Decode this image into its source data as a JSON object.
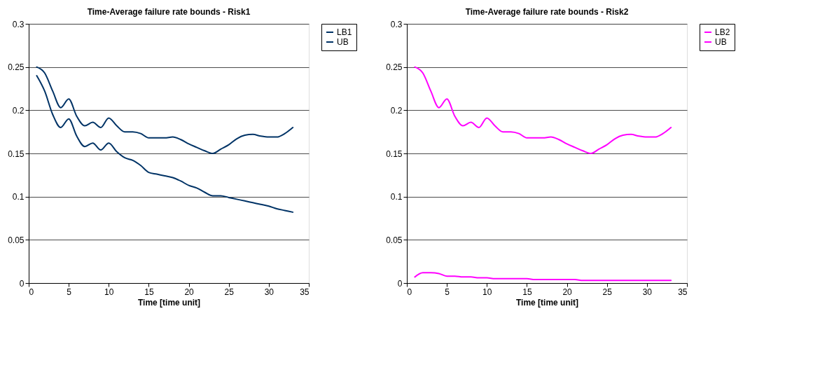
{
  "chart_data": [
    {
      "type": "line",
      "title": "Time-Average failure rate bounds - Risk1",
      "xlabel": "Time [time unit]",
      "xlim": [
        0,
        35
      ],
      "xticks": [
        0,
        5,
        10,
        15,
        20,
        25,
        30,
        35
      ],
      "ylim": [
        0,
        0.3
      ],
      "yticks": [
        0,
        0.05,
        0.1,
        0.15,
        0.2,
        0.25,
        0.3
      ],
      "grid": "y",
      "legend": "right",
      "x": [
        1,
        2,
        3,
        4,
        5,
        6,
        7,
        8,
        9,
        10,
        11,
        12,
        13,
        14,
        15,
        16,
        17,
        18,
        19,
        20,
        21,
        22,
        23,
        24,
        25,
        26,
        27,
        28,
        29,
        30,
        31,
        32,
        33
      ],
      "series": [
        {
          "name": "LB1",
          "color": "#003366",
          "values": [
            0.24,
            0.222,
            0.195,
            0.18,
            0.19,
            0.17,
            0.158,
            0.162,
            0.154,
            0.162,
            0.152,
            0.145,
            0.142,
            0.136,
            0.128,
            0.126,
            0.124,
            0.122,
            0.118,
            0.113,
            0.11,
            0.105,
            0.101,
            0.101,
            0.099,
            0.097,
            0.095,
            0.093,
            0.091,
            0.089,
            0.086,
            0.084,
            0.082
          ]
        },
        {
          "name": "UB",
          "color": "#003366",
          "values": [
            0.25,
            0.243,
            0.222,
            0.203,
            0.213,
            0.193,
            0.182,
            0.186,
            0.18,
            0.191,
            0.182,
            0.175,
            0.175,
            0.173,
            0.168,
            0.168,
            0.168,
            0.169,
            0.166,
            0.161,
            0.157,
            0.153,
            0.15,
            0.155,
            0.16,
            0.167,
            0.171,
            0.172,
            0.17,
            0.169,
            0.169,
            0.173,
            0.18
          ]
        }
      ]
    },
    {
      "type": "line",
      "title": "Time-Average failure rate bounds - Risk2",
      "xlabel": "Time [time unit]",
      "xlim": [
        0,
        35
      ],
      "xticks": [
        0,
        5,
        10,
        15,
        20,
        25,
        30,
        35
      ],
      "ylim": [
        0,
        0.3
      ],
      "yticks": [
        0,
        0.05,
        0.1,
        0.15,
        0.2,
        0.25,
        0.3
      ],
      "grid": "y",
      "legend": "right",
      "x": [
        1,
        2,
        3,
        4,
        5,
        6,
        7,
        8,
        9,
        10,
        11,
        12,
        13,
        14,
        15,
        16,
        17,
        18,
        19,
        20,
        21,
        22,
        23,
        24,
        25,
        26,
        27,
        28,
        29,
        30,
        31,
        32,
        33
      ],
      "series": [
        {
          "name": "LB2",
          "color": "#ff00ff",
          "values": [
            0.007,
            0.012,
            0.012,
            0.011,
            0.008,
            0.008,
            0.007,
            0.007,
            0.006,
            0.006,
            0.005,
            0.005,
            0.005,
            0.005,
            0.005,
            0.004,
            0.004,
            0.004,
            0.004,
            0.004,
            0.004,
            0.003,
            0.003,
            0.003,
            0.003,
            0.003,
            0.003,
            0.003,
            0.003,
            0.003,
            0.003,
            0.003,
            0.003
          ]
        },
        {
          "name": "UB",
          "color": "#ff00ff",
          "values": [
            0.25,
            0.243,
            0.222,
            0.203,
            0.213,
            0.193,
            0.182,
            0.186,
            0.18,
            0.191,
            0.182,
            0.175,
            0.175,
            0.173,
            0.168,
            0.168,
            0.168,
            0.169,
            0.166,
            0.161,
            0.157,
            0.153,
            0.15,
            0.155,
            0.16,
            0.167,
            0.171,
            0.172,
            0.17,
            0.169,
            0.169,
            0.173,
            0.18
          ]
        }
      ]
    }
  ]
}
